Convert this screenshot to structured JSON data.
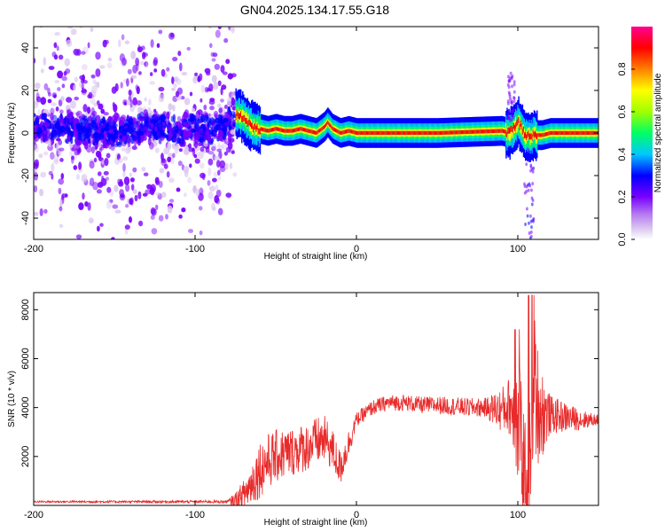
{
  "title": "GN04.2025.134.17.55.G18",
  "chart_data": [
    {
      "type": "heatmap",
      "xlabel": "Height of straight line (km)",
      "ylabel": "Frequency (Hz)",
      "xlim": [
        -200,
        150
      ],
      "ylim": [
        -50,
        50
      ],
      "xticks": [
        -200,
        -100,
        0,
        100
      ],
      "yticks": [
        -40,
        -20,
        0,
        20,
        40
      ],
      "grid": false,
      "colorbar": {
        "label": "Normalized spectral amplitude",
        "ticks": [
          0.0,
          0.2,
          0.4,
          0.6,
          0.8
        ],
        "range": [
          0.0,
          1.0
        ],
        "colormap": [
          "#dcc8f0",
          "#7800ff",
          "#0000ff",
          "#00c8ff",
          "#00ff64",
          "#a0ff00",
          "#ffff00",
          "#ff8000",
          "#ff0000",
          "#ff0090"
        ]
      },
      "peak_frequency": {
        "x": [
          -200,
          -180,
          -160,
          -150,
          -140,
          -130,
          -120,
          -110,
          -100,
          -90,
          -80,
          -75,
          -70,
          -65,
          -60,
          -55,
          -50,
          -45,
          -40,
          -35,
          -30,
          -25,
          -20,
          -18,
          -15,
          -10,
          -5,
          0,
          50,
          90,
          95,
          100,
          105,
          110,
          115,
          120,
          130,
          150
        ],
        "y": [
          3,
          2,
          1,
          0,
          1,
          3,
          2,
          1,
          2,
          1,
          4,
          9,
          7,
          3,
          2,
          1,
          2,
          1,
          1,
          2,
          1,
          0,
          3,
          5,
          2,
          0,
          1,
          0,
          0,
          1,
          0,
          5,
          -2,
          -1,
          -1,
          0,
          0,
          0
        ]
      },
      "regions": [
        {
          "x_range": [
            -200,
            -75
          ],
          "description_level": "noise",
          "amplitude": 0.15,
          "freq_spread": 50
        },
        {
          "x_range": [
            -75,
            150
          ],
          "description_level": "signal",
          "amplitude": 0.9,
          "freq_spread": 2
        }
      ]
    },
    {
      "type": "line",
      "xlabel": "Height of straight line (km)",
      "ylabel": "SNR (10 * v/v)",
      "xlim": [
        -200,
        150
      ],
      "ylim": [
        0,
        8700
      ],
      "xticks": [
        -200,
        -100,
        0,
        100
      ],
      "yticks": [
        2000,
        4000,
        6000,
        8000
      ],
      "grid": false,
      "series": [
        {
          "color": "#e82a2a",
          "envelope": {
            "x": [
              -200,
              -150,
              -100,
              -80,
              -75,
              -70,
              -65,
              -60,
              -55,
              -50,
              -45,
              -40,
              -35,
              -30,
              -25,
              -20,
              -15,
              -10,
              -5,
              0,
              10,
              20,
              30,
              40,
              50,
              60,
              70,
              80,
              90,
              95,
              100,
              103,
              105,
              108,
              110,
              113,
              115,
              120,
              130,
              140,
              150
            ],
            "y": [
              150,
              150,
              150,
              150,
              200,
              400,
              900,
              1500,
              1800,
              2000,
              2100,
              2200,
              2300,
              2400,
              2600,
              2700,
              2300,
              1500,
              2500,
              3500,
              4000,
              4200,
              4200,
              4100,
              4100,
              4050,
              4000,
              4000,
              3900,
              4100,
              3500,
              2000,
              1000,
              2500,
              5000,
              4000,
              3800,
              3700,
              3600,
              3500,
              3500
            ]
          },
          "amplitude": {
            "x": [
              -200,
              -80,
              -60,
              -40,
              -20,
              -5,
              0,
              80,
              95,
              100,
              105,
              110,
              120,
              150
            ],
            "y": [
              40,
              60,
              1200,
              1000,
              1000,
              600,
              300,
              400,
              1200,
              2800,
              2400,
              3000,
              800,
              200
            ]
          }
        }
      ]
    }
  ]
}
